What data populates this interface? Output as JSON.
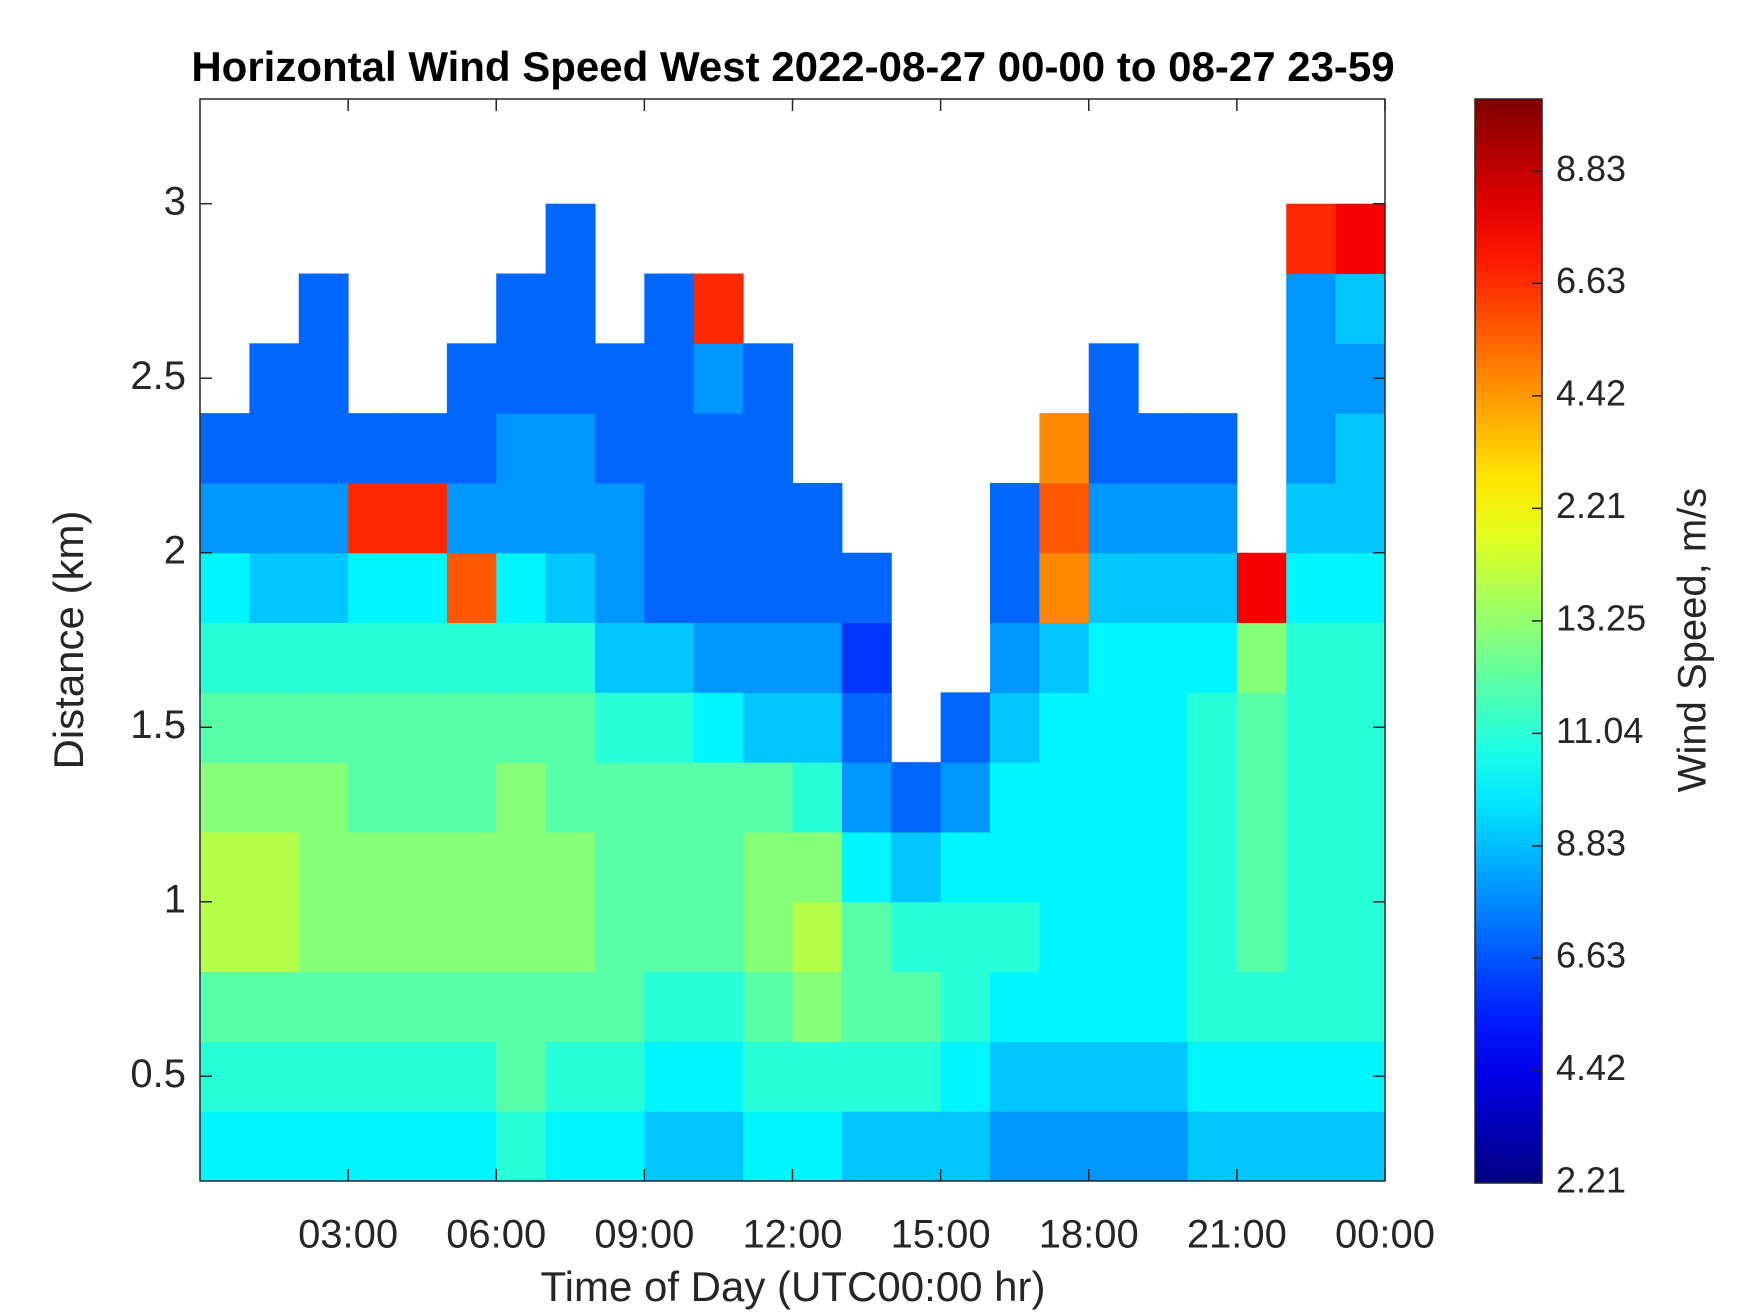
{
  "chart_data": {
    "type": "heatmap",
    "title": "Horizontal Wind Speed West 2022-08-27 00-00 to 08-27 23-59",
    "x_label": "Time of Day (UTC00:00 hr)",
    "y_label": "Distance (km)",
    "colorbar_label": "Wind Speed, m/s",
    "xlim": [
      0,
      24
    ],
    "ylim": [
      0.2,
      3.3
    ],
    "clim": [
      2.21,
      23.5
    ],
    "xticks": [
      {
        "value": 3,
        "label": "03:00"
      },
      {
        "value": 6,
        "label": "06:00"
      },
      {
        "value": 9,
        "label": "09:00"
      },
      {
        "value": 12,
        "label": "12:00"
      },
      {
        "value": 15,
        "label": "15:00"
      },
      {
        "value": 18,
        "label": "18:00"
      },
      {
        "value": 21,
        "label": "21:00"
      },
      {
        "value": 24,
        "label": "00:00"
      }
    ],
    "yticks": [
      0.5,
      1,
      1.5,
      2,
      2.5,
      3
    ],
    "cticks": [
      2.21,
      4.42,
      6.63,
      8.83,
      11.04,
      13.25,
      {
        "value": 15.46,
        "label": "2.21"
      },
      {
        "value": 17.67,
        "label": "4.42"
      },
      {
        "value": 19.88,
        "label": "6.63"
      },
      {
        "value": 22.08,
        "label": "8.83"
      }
    ],
    "x": [
      0.5,
      1.5,
      2.5,
      3.5,
      4.5,
      5.5,
      6.5,
      7.5,
      8.5,
      9.5,
      10.5,
      11.5,
      12.5,
      13.5,
      14.5,
      15.5,
      16.5,
      17.5,
      18.5,
      19.5,
      20.5,
      21.5,
      22.5,
      23.5
    ],
    "y": [
      0.3,
      0.5,
      0.7,
      0.9,
      1.1,
      1.3,
      1.5,
      1.7,
      1.9,
      2.1,
      2.3,
      2.5,
      2.7,
      2.9,
      3.1
    ],
    "values": [
      [
        10,
        10,
        10,
        10,
        10,
        10,
        11,
        10,
        10,
        9,
        9,
        10,
        10,
        9,
        9,
        9,
        8,
        8,
        8,
        8,
        9,
        9,
        9,
        9
      ],
      [
        11,
        11,
        11,
        11,
        11,
        11,
        12,
        11,
        11,
        10,
        10,
        11,
        11,
        11,
        11,
        10,
        9,
        9,
        9,
        9,
        10,
        10,
        10,
        10
      ],
      [
        12,
        12,
        12,
        12,
        12,
        12,
        12,
        12,
        12,
        11,
        11,
        12,
        13,
        12,
        12,
        11,
        10,
        10,
        10,
        10,
        11,
        11,
        11,
        11
      ],
      [
        14,
        14,
        13,
        13,
        13,
        13,
        13,
        13,
        12,
        12,
        12,
        13,
        14,
        12,
        11,
        11,
        11,
        10,
        10,
        10,
        11,
        12,
        11,
        11
      ],
      [
        14,
        14,
        13,
        13,
        13,
        13,
        13,
        13,
        12,
        12,
        12,
        13,
        13,
        10,
        9,
        10,
        10,
        10,
        10,
        10,
        11,
        12,
        11,
        11
      ],
      [
        13,
        13,
        13,
        12,
        12,
        12,
        13,
        12,
        12,
        12,
        12,
        12,
        11,
        8,
        7,
        8,
        10,
        10,
        10,
        10,
        11,
        12,
        11,
        11
      ],
      [
        12,
        12,
        12,
        12,
        12,
        12,
        12,
        12,
        11,
        11,
        10,
        9,
        9,
        7,
        null,
        7,
        9,
        10,
        10,
        10,
        11,
        12,
        11,
        11
      ],
      [
        11,
        11,
        11,
        11,
        11,
        11,
        11,
        11,
        9,
        9,
        8,
        8,
        8,
        6,
        null,
        null,
        8,
        9,
        10,
        10,
        10,
        13,
        11,
        11
      ],
      [
        10,
        9,
        9,
        10,
        10,
        19,
        10,
        9,
        8,
        7,
        7,
        7,
        7,
        7,
        null,
        null,
        7,
        18,
        9,
        9,
        9,
        21,
        10,
        10
      ],
      [
        8,
        8,
        8,
        20,
        20,
        8,
        8,
        8,
        8,
        7,
        7,
        7,
        7,
        null,
        null,
        null,
        7,
        19,
        8,
        8,
        8,
        null,
        9,
        9
      ],
      [
        7,
        7,
        7,
        7,
        7,
        7,
        8,
        8,
        7,
        7,
        7,
        7,
        null,
        null,
        null,
        null,
        null,
        18,
        7,
        7,
        7,
        null,
        8,
        9
      ],
      [
        null,
        7,
        7,
        null,
        null,
        7,
        7,
        7,
        7,
        7,
        8,
        7,
        null,
        null,
        null,
        null,
        null,
        null,
        7,
        null,
        null,
        null,
        8,
        8
      ],
      [
        null,
        null,
        7,
        null,
        null,
        null,
        7,
        7,
        null,
        7,
        20,
        null,
        null,
        null,
        null,
        null,
        null,
        null,
        null,
        null,
        null,
        null,
        8,
        9
      ],
      [
        null,
        null,
        null,
        null,
        null,
        null,
        null,
        7,
        null,
        null,
        null,
        null,
        null,
        null,
        null,
        null,
        null,
        null,
        null,
        null,
        null,
        null,
        20,
        21
      ],
      [
        null,
        null,
        null,
        null,
        null,
        null,
        null,
        null,
        null,
        null,
        null,
        null,
        null,
        null,
        null,
        null,
        null,
        null,
        null,
        null,
        null,
        null,
        null,
        null
      ]
    ]
  }
}
